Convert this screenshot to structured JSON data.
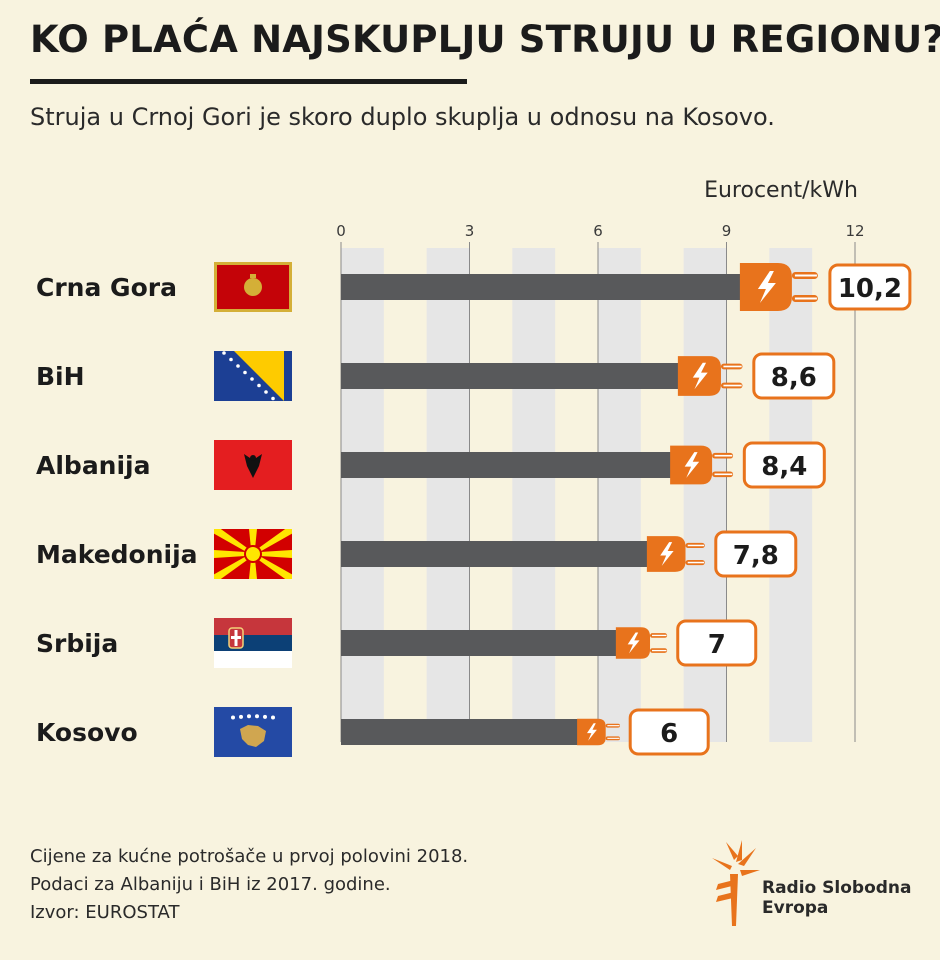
{
  "header": {
    "title": "KO PLAĆA NAJSKUPLJU STRUJU U REGIONU?",
    "subtitle": "Struja u Crnoj Gori je skoro duplo skuplja u odnosu na Kosovo."
  },
  "colors": {
    "background": "#f8f3df",
    "bar": "#58595b",
    "plug": "#e8731c",
    "grid_band": "#e6e6e6",
    "text": "#1b1b1b"
  },
  "chart_data": {
    "type": "bar",
    "orientation": "horizontal",
    "unit_label": "Eurocent/kWh",
    "categories": [
      "Crna Gora",
      "BiH",
      "Albanija",
      "Makedonija",
      "Srbija",
      "Kosovo"
    ],
    "values": [
      10.2,
      8.6,
      8.4,
      7.8,
      7,
      6
    ],
    "value_labels": [
      "10,2",
      "8,6",
      "8,4",
      "7,8",
      "7",
      "6"
    ],
    "flag_icons": [
      "flag-montenegro-icon",
      "flag-bosnia-icon",
      "flag-albania-icon",
      "flag-macedonia-icon",
      "flag-serbia-icon",
      "flag-kosovo-icon"
    ],
    "xticks": [
      0,
      3,
      6,
      9,
      12
    ],
    "xlim": [
      0,
      12
    ],
    "grid": "alternating vertical bands"
  },
  "footnotes": [
    "Cijene za kućne potrošače u prvoj polovini 2018.",
    "Podaci za Albaniju i BiH iz 2017. godine.",
    "Izvor: EUROSTAT"
  ],
  "logo": {
    "line1": "Radio Slobodna",
    "line2": "Evropa"
  }
}
